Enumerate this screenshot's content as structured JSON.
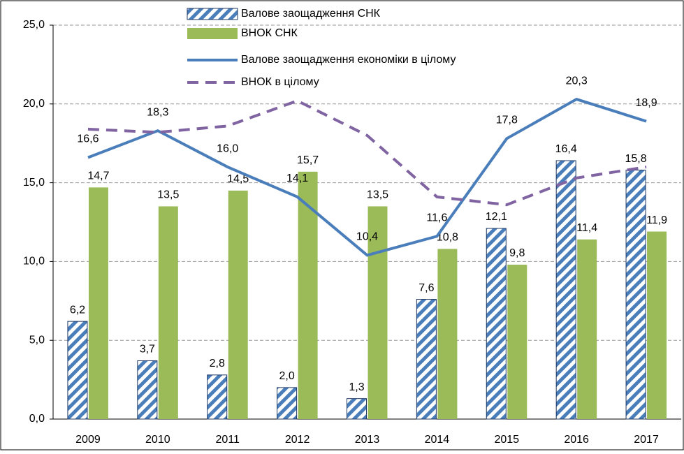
{
  "chart_data": {
    "type": "bar",
    "categories": [
      "2009",
      "2010",
      "2011",
      "2012",
      "2013",
      "2014",
      "2015",
      "2016",
      "2017"
    ],
    "series": [
      {
        "name": "Валове заощадження СНК",
        "type": "bar",
        "pattern": "hatched",
        "color": "#4a7ebb",
        "values": [
          6.2,
          3.7,
          2.8,
          2.0,
          1.3,
          7.6,
          12.1,
          16.4,
          15.8
        ],
        "value_labels": [
          "6,2",
          "3,7",
          "2,8",
          "2,0",
          "1,3",
          "7,6",
          "12,1",
          "16,4",
          "15,8"
        ]
      },
      {
        "name": "ВНОК  СНК",
        "type": "bar",
        "color": "#9bbb59",
        "values": [
          14.7,
          13.5,
          14.5,
          15.7,
          13.5,
          10.8,
          9.8,
          11.4,
          11.9
        ],
        "value_labels": [
          "14,7",
          "13,5",
          "14,5",
          "15,7",
          "13,5",
          "10,8",
          "9,8",
          "11,4",
          "11,9"
        ]
      },
      {
        "name": "Валове заощадження економіки в цілому",
        "type": "line",
        "color": "#4a7ebb",
        "values": [
          16.6,
          18.3,
          16.0,
          14.1,
          10.4,
          11.6,
          17.8,
          20.3,
          18.9
        ],
        "value_labels": [
          "16,6",
          "18,3",
          "16,0",
          "14,1",
          "10,4",
          "11,6",
          "17,8",
          "20,3",
          "18,9"
        ]
      },
      {
        "name": "ВНОК в цілому",
        "type": "line",
        "dashed": true,
        "color": "#8064a2",
        "values": [
          18.4,
          18.2,
          18.6,
          20.2,
          18.0,
          14.1,
          13.6,
          15.3,
          16.0
        ]
      }
    ],
    "ylim": [
      0,
      25
    ],
    "yticks": [
      {
        "value": 0,
        "label": "0,0"
      },
      {
        "value": 5,
        "label": "5,0"
      },
      {
        "value": 10,
        "label": "10,0"
      },
      {
        "value": 15,
        "label": "15,0"
      },
      {
        "value": 20,
        "label": "20,0"
      },
      {
        "value": 25,
        "label": "25,0"
      }
    ],
    "grid": true
  }
}
